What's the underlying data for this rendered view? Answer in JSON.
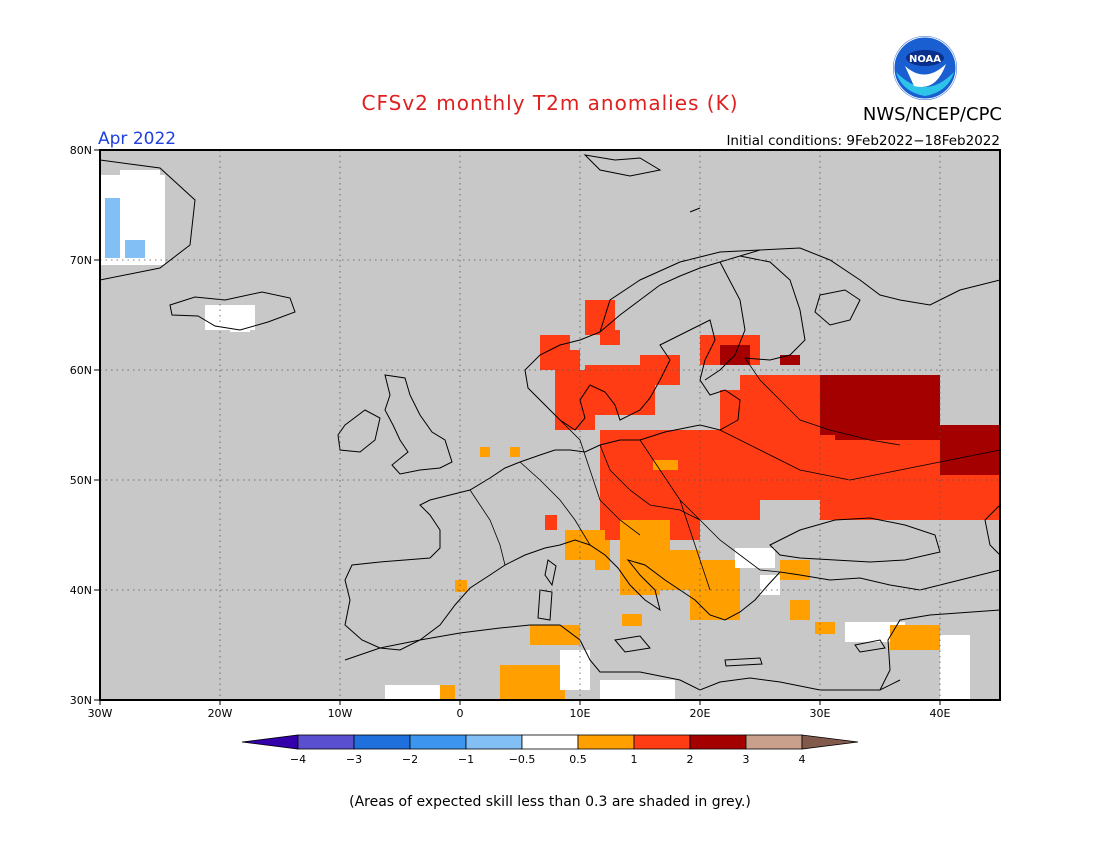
{
  "header": {
    "title": "CFSv2 monthly T2m anomalies (K)",
    "month": "Apr 2022",
    "initial_conditions": "Initial conditions: 9Feb2022−18Feb2022",
    "agency": "NWS/NCEP/CPC",
    "logo_text": "NOAA"
  },
  "map": {
    "lat_labels": [
      "80N",
      "70N",
      "60N",
      "50N",
      "40N",
      "30N"
    ],
    "lon_labels": [
      "30W",
      "20W",
      "10W",
      "0",
      "10E",
      "20E",
      "30E",
      "40E"
    ],
    "lat_values": [
      80,
      70,
      60,
      50,
      40,
      30
    ],
    "lon_values": [
      -30,
      -20,
      -10,
      0,
      10,
      20,
      30,
      40
    ],
    "extent": {
      "lon": [
        -30,
        45
      ],
      "lat": [
        30,
        80
      ]
    },
    "no_skill_color": "#c8c8c8",
    "coastline_color": "#000000",
    "gridline_style": "dotted"
  },
  "colorbar": {
    "tick_labels": [
      "−4",
      "−3",
      "−2",
      "−1",
      "−0.5",
      "0.5",
      "1",
      "2",
      "3",
      "4"
    ],
    "colors": [
      "#3300aa",
      "#5a4fcf",
      "#1f6fdc",
      "#3c96f0",
      "#82bff5",
      "#ffffff",
      "#ffa000",
      "#ff3c14",
      "#a50000",
      "#c8a08c",
      "#825a4b"
    ]
  },
  "footnote": "(Areas of expected skill less than 0.3 are shaded in grey.)"
}
